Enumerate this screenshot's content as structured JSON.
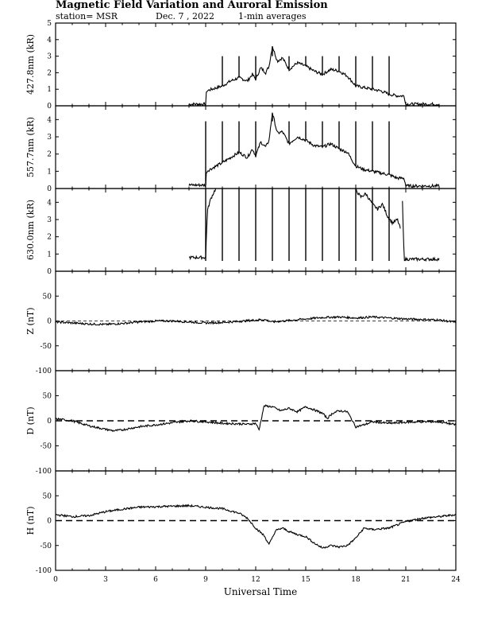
{
  "header": {
    "title": "Magnetic Field Variation and Auroral Emission",
    "station": "station= MSR",
    "date": "Dec. 7 , 2022",
    "averaging": "1-min averages"
  },
  "chart_data": {
    "type": "line",
    "xlabel": "Universal Time",
    "xlim": [
      0,
      24
    ],
    "xticks": [
      0,
      3,
      6,
      9,
      12,
      15,
      18,
      21,
      24
    ],
    "panels": [
      {
        "id": "427",
        "ylabel": "427.8nm (kR)",
        "ylim": [
          0,
          5
        ],
        "yticks": [
          0,
          1,
          2,
          3,
          4,
          5
        ],
        "data_range": [
          8,
          23
        ],
        "spikes": [
          10,
          11,
          12,
          13,
          14,
          15,
          16,
          17,
          18,
          19,
          20
        ],
        "spike_to": 3.0,
        "series": [
          {
            "x": [
              8.0,
              9.0,
              9.05,
              10.0,
              10.5,
              11.0,
              11.5,
              11.8,
              12.0,
              12.3,
              12.6,
              12.8,
              13.0,
              13.3,
              13.6,
              14.0,
              14.5,
              15.0,
              15.5,
              16.0,
              16.5,
              17.0,
              17.5,
              18.0,
              18.5,
              19.0,
              19.5,
              20.0,
              20.5,
              20.9,
              21.0,
              23.0
            ],
            "y": [
              0.1,
              0.1,
              0.9,
              1.2,
              1.5,
              1.7,
              1.5,
              1.9,
              1.6,
              2.3,
              2.0,
              2.4,
              3.6,
              2.7,
              2.9,
              2.2,
              2.6,
              2.4,
              2.1,
              1.9,
              2.2,
              2.1,
              1.8,
              1.2,
              1.1,
              1.0,
              0.9,
              0.7,
              0.6,
              0.6,
              0.1,
              0.1
            ]
          }
        ]
      },
      {
        "id": "557",
        "ylabel": "557.7nm (kR)",
        "ylim": [
          0,
          4.8
        ],
        "yticks": [
          0,
          1,
          2,
          3,
          4
        ],
        "data_range": [
          8,
          23
        ],
        "spikes": [
          9,
          10,
          11,
          12,
          13,
          14,
          15,
          16,
          17,
          18,
          19,
          20
        ],
        "spike_to": 3.9,
        "series": [
          {
            "x": [
              8.0,
              9.0,
              9.05,
              10.0,
              10.5,
              11.0,
              11.5,
              11.8,
              12.0,
              12.3,
              12.6,
              12.8,
              13.0,
              13.3,
              13.6,
              14.0,
              14.5,
              15.0,
              15.5,
              16.0,
              16.5,
              17.0,
              17.5,
              18.0,
              18.5,
              19.0,
              19.5,
              20.0,
              20.5,
              20.9,
              21.0,
              23.0
            ],
            "y": [
              0.2,
              0.2,
              1.0,
              1.5,
              1.8,
              2.1,
              1.8,
              2.3,
              1.9,
              2.7,
              2.4,
              2.8,
              4.4,
              3.2,
              3.3,
              2.6,
              3.0,
              2.8,
              2.5,
              2.4,
              2.6,
              2.3,
              2.1,
              1.3,
              1.1,
              1.0,
              0.9,
              0.8,
              0.6,
              0.6,
              0.15,
              0.15
            ]
          }
        ]
      },
      {
        "id": "630",
        "ylabel": "630.0nm (kR)",
        "ylim": [
          0,
          4.8
        ],
        "yticks": [
          0,
          1,
          2,
          3,
          4
        ],
        "data_range": [
          8,
          23
        ],
        "spikes": [
          9,
          10,
          11,
          12,
          13,
          14,
          15,
          16,
          17,
          18,
          19,
          20
        ],
        "spike_to": 0.6,
        "spike_from": 4.8,
        "series": [
          {
            "x": [
              8.0,
              9.0,
              9.1,
              9.3,
              9.6
            ],
            "y": [
              0.8,
              0.8,
              3.5,
              4.2,
              4.8
            ]
          },
          {
            "x": [
              17.95,
              18.3,
              18.6,
              19.0,
              19.3,
              19.6,
              19.9,
              20.2,
              20.5,
              20.7
            ],
            "y": [
              4.8,
              4.3,
              4.5,
              3.9,
              3.6,
              3.9,
              3.2,
              2.8,
              3.0,
              2.4
            ]
          },
          {
            "x": [
              20.8,
              20.9,
              23.0
            ],
            "y": [
              4.0,
              0.7,
              0.7
            ]
          }
        ]
      },
      {
        "id": "Z",
        "ylabel": "Z (nT)",
        "ylim": [
          -100,
          100
        ],
        "yticks": [
          -100,
          -50,
          0,
          50
        ],
        "zero_line": true,
        "series": [
          {
            "x": [
              0,
              1,
              2,
              3,
              4,
              5,
              6,
              7,
              8,
              9,
              10,
              11,
              12,
              12.5,
              13,
              14,
              15,
              16,
              17,
              18,
              19,
              20,
              21,
              22,
              23,
              24
            ],
            "y": [
              -2,
              -4,
              -6,
              -7,
              -5,
              -2,
              0,
              0,
              -2,
              -4,
              -3,
              -1,
              2,
              3,
              -2,
              1,
              4,
              7,
              8,
              6,
              8,
              6,
              4,
              3,
              2,
              -3
            ]
          }
        ]
      },
      {
        "id": "D",
        "ylabel": "D (nT)",
        "ylim": [
          -100,
          100
        ],
        "yticks": [
          -100,
          -50,
          0,
          50
        ],
        "zero_line": true,
        "series": [
          {
            "x": [
              0,
              1,
              2,
              3,
              3.5,
              4,
              5,
              6,
              7,
              8,
              9,
              10,
              11,
              11.5,
              12,
              12.2,
              12.5,
              13,
              13.5,
              14,
              14.5,
              15,
              15.5,
              16,
              16.3,
              16.6,
              17,
              17.5,
              18,
              18.5,
              19,
              20,
              21,
              22,
              23,
              24
            ],
            "y": [
              4,
              0,
              -10,
              -17,
              -20,
              -18,
              -12,
              -8,
              -4,
              0,
              -2,
              -5,
              -6,
              -7,
              -5,
              -18,
              30,
              28,
              20,
              25,
              18,
              28,
              22,
              15,
              5,
              15,
              20,
              18,
              -12,
              -8,
              -2,
              -5,
              -3,
              -2,
              -2,
              -8
            ]
          }
        ]
      },
      {
        "id": "H",
        "ylabel": "H (nT)",
        "ylim": [
          -100,
          100
        ],
        "yticks": [
          -100,
          -50,
          0,
          50
        ],
        "zero_line": true,
        "series": [
          {
            "x": [
              0,
              1,
              2,
              3,
              4,
              5,
              6,
              7,
              8,
              9,
              10,
              11,
              11.5,
              12,
              12.5,
              12.8,
              13.2,
              13.6,
              14,
              14.5,
              15,
              15.5,
              16,
              16.5,
              17,
              17.5,
              18,
              18.5,
              19,
              20,
              21,
              22,
              23,
              24
            ],
            "y": [
              12,
              8,
              10,
              18,
              23,
              27,
              28,
              29,
              30,
              27,
              24,
              15,
              5,
              -15,
              -30,
              -48,
              -20,
              -15,
              -22,
              -28,
              -32,
              -45,
              -55,
              -50,
              -53,
              -50,
              -35,
              -15,
              -18,
              -15,
              -2,
              5,
              8,
              12
            ]
          }
        ]
      }
    ]
  }
}
